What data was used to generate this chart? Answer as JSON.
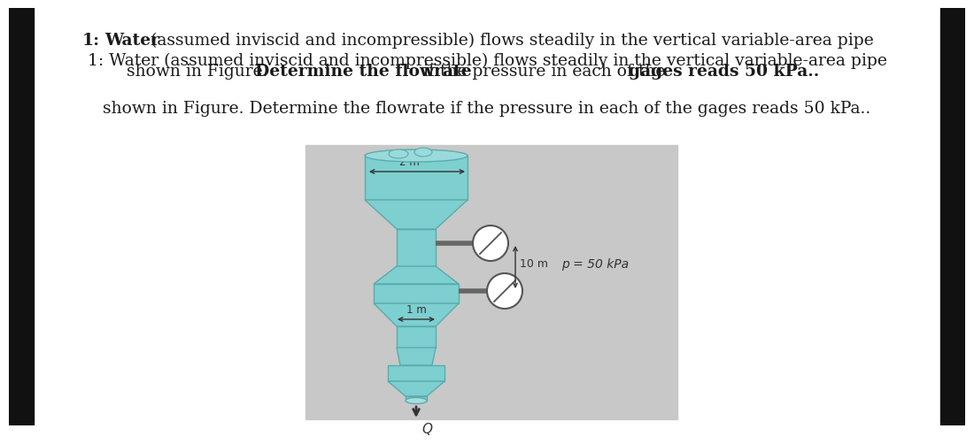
{
  "bg_color": "#ffffff",
  "left_border_color": "#111111",
  "right_border_color": "#111111",
  "box_color": "#c8c8c8",
  "pipe_color": "#7ecfd0",
  "pipe_edge": "#5aacac",
  "pipe_top_color": "#8ed8d8",
  "gage_face": "#ffffff",
  "gage_edge": "#555555",
  "dim_color": "#333333",
  "text_color": "#1a1a1a",
  "title_fontsize": 13.5,
  "label_2m": "2 m",
  "label_1m": "1 m",
  "label_10m": "10 m",
  "label_p": "p = 50 kPa",
  "label_Q": "Q"
}
